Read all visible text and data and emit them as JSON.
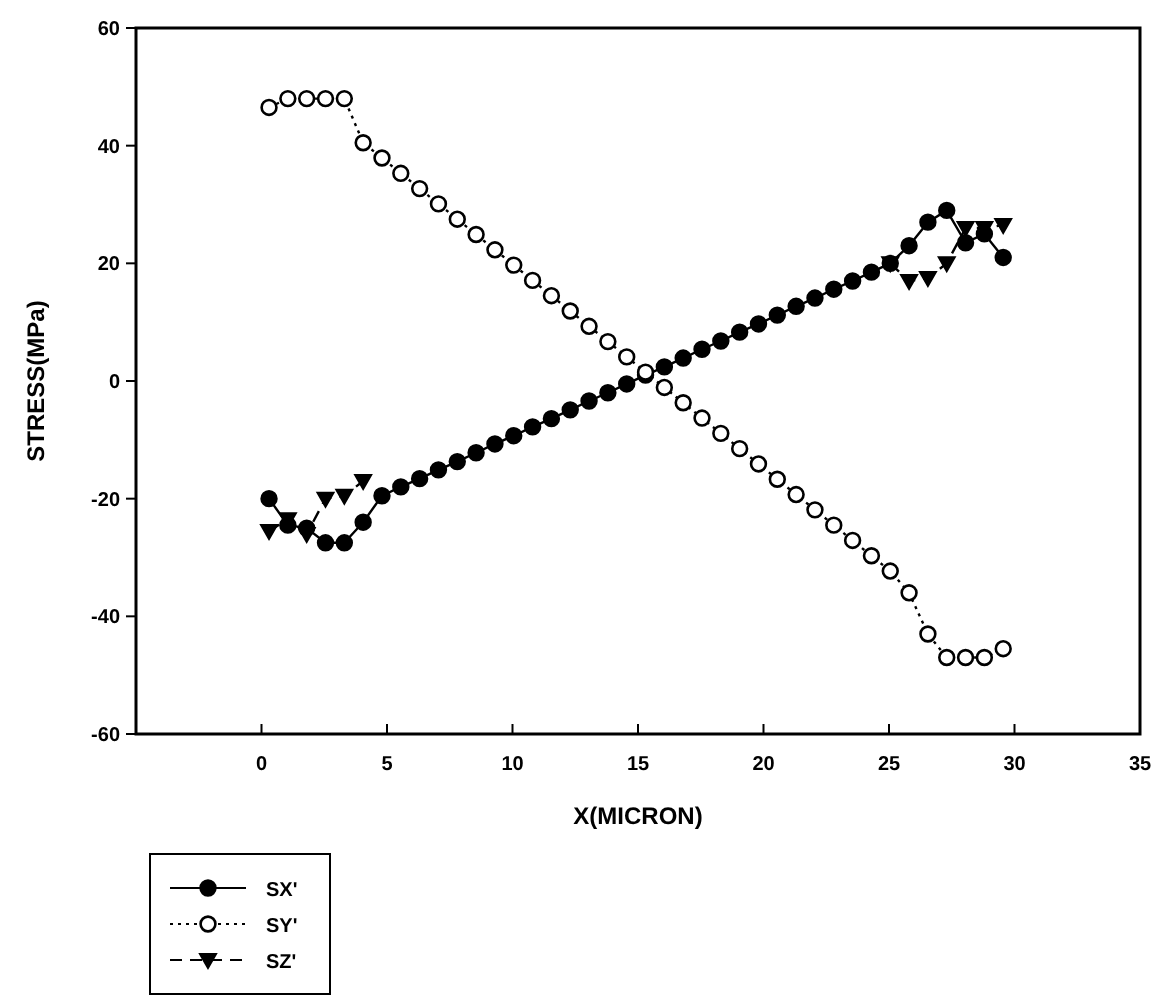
{
  "chart_data": {
    "type": "line",
    "xlabel": "X(MICRON)",
    "ylabel": "STRESS(MPa)",
    "x": [
      0.3,
      1.05,
      1.8,
      2.55,
      3.3,
      4.05,
      4.8,
      5.55,
      6.3,
      7.05,
      7.8,
      8.55,
      9.3,
      10.05,
      10.8,
      11.55,
      12.3,
      13.05,
      13.8,
      14.55,
      15.3,
      16.05,
      16.8,
      17.55,
      18.3,
      19.05,
      19.8,
      20.55,
      21.3,
      22.05,
      22.8,
      23.55,
      24.3,
      25.05,
      25.8,
      26.55,
      27.3,
      28.05,
      28.8,
      29.55
    ],
    "series": [
      {
        "name": "SX'",
        "color": "#000000",
        "marker": "circle",
        "line_style": "solid",
        "values": [
          -20,
          -24.5,
          -25,
          -27.5,
          -27.5,
          -24,
          -19.5,
          -18,
          -16.6,
          -15.1,
          -13.7,
          -12.2,
          -10.7,
          -9.3,
          -7.8,
          -6.4,
          -4.9,
          -3.4,
          -2,
          -0.5,
          1,
          2.4,
          3.9,
          5.4,
          6.8,
          8.3,
          9.7,
          11.2,
          12.7,
          14.1,
          15.6,
          17,
          18.5,
          20,
          23,
          27,
          29,
          23.5,
          25,
          21
        ]
      },
      {
        "name": "SY'",
        "color": "#000000",
        "marker": "circle",
        "line_style": "dotted",
        "values": [
          46.5,
          48,
          48,
          48,
          48,
          40.5,
          37.9,
          35.3,
          32.7,
          30.1,
          27.5,
          24.9,
          22.3,
          19.7,
          17.1,
          14.5,
          11.9,
          9.3,
          6.7,
          4.1,
          1.5,
          -1.1,
          -3.7,
          -6.3,
          -8.9,
          -11.5,
          -14.1,
          -16.7,
          -19.3,
          -21.9,
          -24.5,
          -27.1,
          -29.7,
          -32.3,
          -36,
          -43,
          -47,
          -47,
          -47,
          -45.5
        ]
      },
      {
        "name": "SZ'",
        "color": "#000000",
        "marker": "triangle",
        "line_style": "dashed",
        "values": [
          -25.5,
          -23.5,
          -26,
          -20,
          -19.5,
          -17,
          null,
          null,
          null,
          null,
          null,
          null,
          null,
          null,
          null,
          null,
          null,
          null,
          null,
          null,
          null,
          null,
          null,
          null,
          null,
          null,
          null,
          null,
          null,
          null,
          null,
          null,
          null,
          20,
          17,
          17.5,
          20,
          26,
          26,
          26.5
        ]
      }
    ],
    "xlim": [
      -5,
      35
    ],
    "xticks": [
      0,
      5,
      10,
      15,
      20,
      25,
      30,
      35
    ],
    "ylim": [
      -60,
      60
    ],
    "yticks": [
      -60,
      -40,
      -20,
      0,
      20,
      40,
      60
    ],
    "grid": false,
    "legend": "bottom left"
  }
}
